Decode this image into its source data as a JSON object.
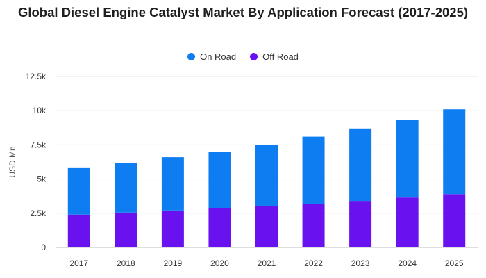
{
  "chart_data": {
    "type": "bar",
    "stacked": true,
    "title": "Global Diesel Engine Catalyst Market By Application Forecast (2017-2025)",
    "xlabel": "",
    "ylabel": "USD Mn",
    "ylim": [
      0,
      12500
    ],
    "yticks": [
      0,
      2500,
      5000,
      7500,
      10000,
      12500
    ],
    "ytick_labels": [
      "0",
      "2.5k",
      "5k",
      "7.5k",
      "10k",
      "12.5k"
    ],
    "grid": true,
    "legend_position": "top",
    "categories": [
      "2017",
      "2018",
      "2019",
      "2020",
      "2021",
      "2022",
      "2023",
      "2024",
      "2025"
    ],
    "series": [
      {
        "name": "Off Road",
        "color": "#6a11f0",
        "values": [
          2400,
          2550,
          2700,
          2850,
          3050,
          3200,
          3400,
          3650,
          3900
        ]
      },
      {
        "name": "On Road",
        "color": "#0f7df2",
        "values": [
          3400,
          3650,
          3900,
          4150,
          4450,
          4900,
          5300,
          5700,
          6200
        ]
      }
    ]
  }
}
